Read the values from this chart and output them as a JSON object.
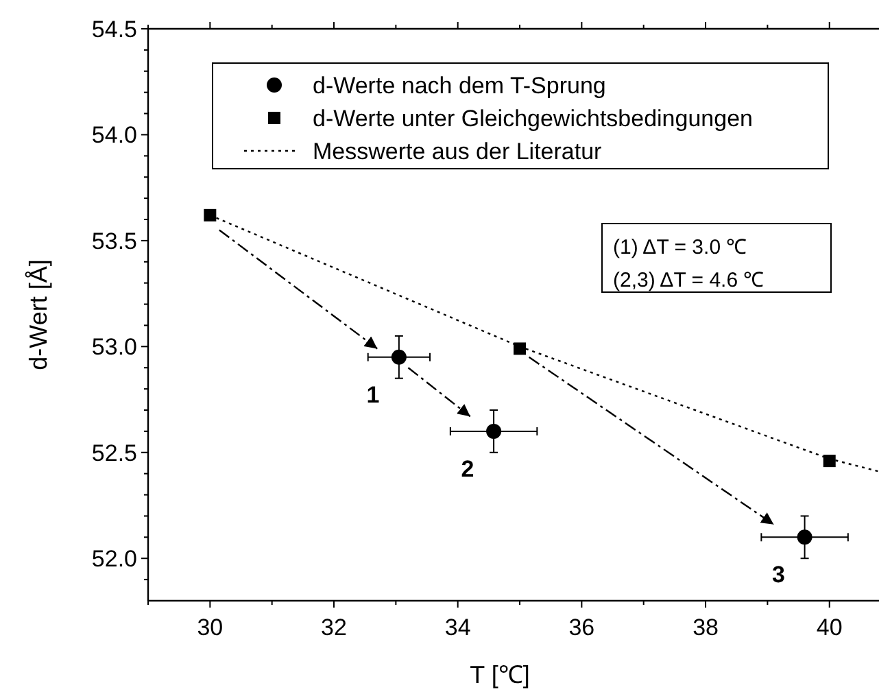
{
  "chart_data": {
    "type": "scatter",
    "xlabel": "T [℃]",
    "ylabel": "d-Wert [Å]",
    "xlim": [
      29,
      40.8
    ],
    "ylim": [
      51.8,
      54.5
    ],
    "xticks": [
      {
        "value": 29,
        "label": null
      },
      30,
      {
        "value": 31,
        "label": null
      },
      32,
      {
        "value": 33,
        "label": null
      },
      34,
      {
        "value": 35,
        "label": null
      },
      36,
      {
        "value": 37,
        "label": null
      },
      38,
      {
        "value": 39,
        "label": null
      },
      40
    ],
    "yticks": [
      {
        "value": 51.9,
        "label": null
      },
      {
        "value": 52,
        "label": "52.0"
      },
      {
        "value": 52.1,
        "label": null
      },
      {
        "value": 52.2,
        "label": null
      },
      {
        "value": 52.3,
        "label": null
      },
      {
        "value": 52.4,
        "label": null
      },
      52.5,
      {
        "value": 52.6,
        "label": null
      },
      {
        "value": 52.7,
        "label": null
      },
      {
        "value": 52.8,
        "label": null
      },
      {
        "value": 52.9,
        "label": null
      },
      {
        "value": 53,
        "label": "53.0"
      },
      {
        "value": 53.1,
        "label": null
      },
      {
        "value": 53.2,
        "label": null
      },
      {
        "value": 53.3,
        "label": null
      },
      {
        "value": 53.4,
        "label": null
      },
      53.5,
      {
        "value": 53.6,
        "label": null
      },
      {
        "value": 53.7,
        "label": null
      },
      {
        "value": 53.8,
        "label": null
      },
      {
        "value": 53.9,
        "label": null
      },
      {
        "value": 54,
        "label": "54.0"
      },
      {
        "value": 54.1,
        "label": null
      },
      {
        "value": 54.2,
        "label": null
      },
      {
        "value": 54.3,
        "label": null
      },
      {
        "value": 54.4,
        "label": null
      },
      54.5
    ],
    "grid": false,
    "legend": "top",
    "series": [
      {
        "name": "d-Werte nach dem T-Sprung",
        "marker": "circle",
        "color": "#000000",
        "x": [
          33.05,
          34.58,
          39.6
        ],
        "values": [
          52.95,
          52.6,
          52.1
        ],
        "errors": [
          0.1,
          0.1,
          0.1
        ],
        "xerrors": [
          0.5,
          0.7,
          0.7
        ]
      },
      {
        "name": "d-Werte unter Gleichgewichtsbedingungen",
        "marker": "square",
        "color": "#000000",
        "x": [
          30,
          35,
          40
        ],
        "values": [
          53.62,
          52.99,
          52.46
        ]
      },
      {
        "name": "Messwerte aus der Literatur",
        "type": "line",
        "marker": "none",
        "line_style": "dotted",
        "color": "#000000",
        "x": [
          30,
          35,
          40,
          40.8
        ],
        "values": [
          53.62,
          53.0,
          52.47,
          52.41
        ]
      },
      {
        "type": "line",
        "marker": "none",
        "line_style": "dashed",
        "color": "#000000",
        "x": [
          30.15,
          32.7
        ],
        "values": [
          53.55,
          52.99
        ]
      },
      {
        "type": "line",
        "marker": "none",
        "line_style": "dashed",
        "color": "#000000",
        "x": [
          33.2,
          34.2
        ],
        "values": [
          52.9,
          52.67
        ]
      },
      {
        "type": "line",
        "marker": "none",
        "line_style": "dashed",
        "color": "#000000",
        "x": [
          35.15,
          39.1
        ],
        "values": [
          52.95,
          52.16
        ]
      }
    ],
    "annotations": [
      {
        "text": "1",
        "x": 33.05,
        "y": 52.95
      },
      {
        "text": "2",
        "x": 34.58,
        "y": 52.6
      },
      {
        "text": "3",
        "x": 39.6,
        "y": 52.1
      },
      "(1)    ΔT = 3.0 ℃",
      "(2,3) ΔT = 4.6 ℃"
    ]
  }
}
